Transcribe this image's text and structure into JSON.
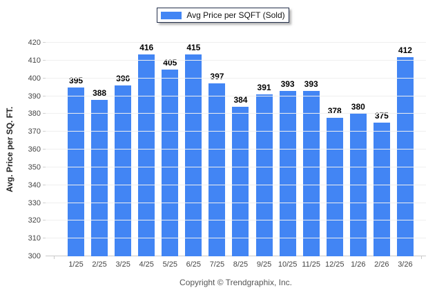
{
  "legend": {
    "label": "Avg Price per SQFT (Sold)",
    "swatch_color": "#4285f4"
  },
  "footer": {
    "copyright": "Copyright © Trendgraphix, Inc."
  },
  "chart_data": {
    "type": "bar",
    "title": "",
    "series_name": "Avg Price per SQFT (Sold)",
    "categories": [
      "1/25",
      "2/25",
      "3/25",
      "4/25",
      "5/25",
      "6/25",
      "7/25",
      "8/25",
      "9/25",
      "10/25",
      "11/25",
      "12/25",
      "1/26",
      "2/26",
      "3/26"
    ],
    "values": [
      395,
      388,
      396,
      416,
      405,
      415,
      397,
      384,
      391,
      393,
      393,
      378,
      380,
      375,
      412
    ],
    "xlabel": "",
    "ylabel": "Avg. Price per SQ. FT.",
    "ylim": [
      300,
      420
    ],
    "ytick_step": 10,
    "grid": true,
    "legend_position": "top",
    "bar_color": "#4285f4",
    "grid_color": "#efefef",
    "axis_color": "#c9c9c9"
  }
}
